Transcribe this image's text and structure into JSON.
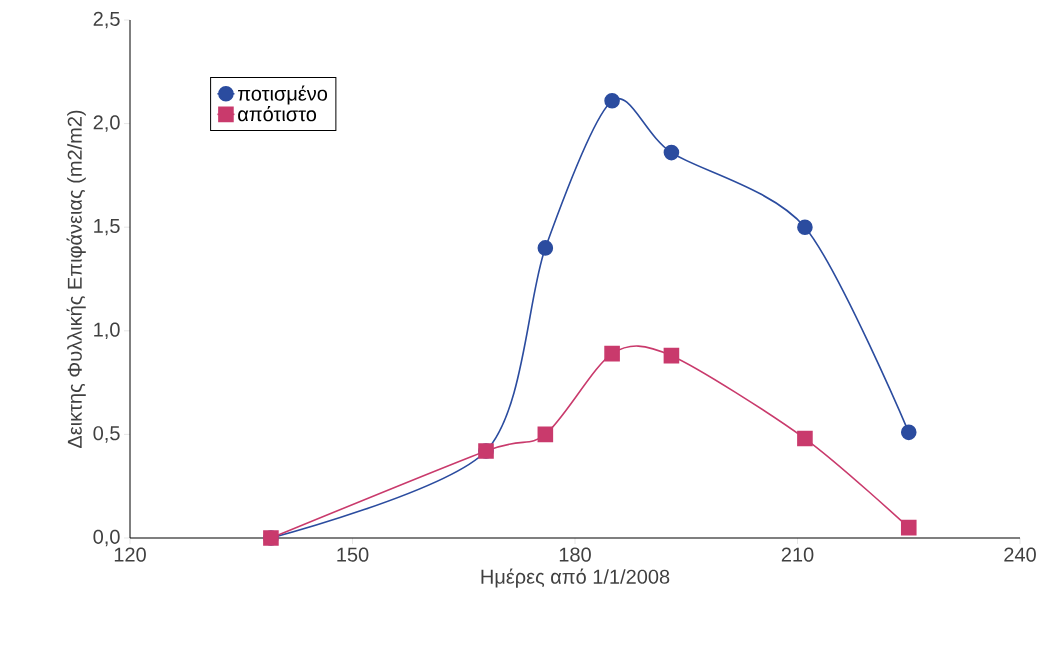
{
  "chart_data": {
    "type": "line",
    "xlabel": "Ημέρες από 1/1/2008",
    "ylabel": "Δεικτης Φυλλικής Επιφάνειας (m2/m2)",
    "series": [
      {
        "name": "ποτισμένο",
        "color": "#2b4c9f",
        "marker": "circle",
        "x": [
          139,
          168,
          176,
          185,
          193,
          211,
          225
        ],
        "values": [
          0,
          0.42,
          1.4,
          2.11,
          1.86,
          1.5,
          0.51
        ]
      },
      {
        "name": "απότιστο",
        "color": "#c93a6c",
        "marker": "square",
        "x": [
          139,
          168,
          176,
          185,
          193,
          211,
          225
        ],
        "values": [
          0,
          0.42,
          0.5,
          0.89,
          0.88,
          0.48,
          0.05
        ]
      }
    ],
    "xlim": [
      120,
      240
    ],
    "xticks": [
      120,
      150,
      180,
      210,
      240
    ],
    "ylim": [
      0,
      2.5
    ],
    "yticks": [
      {
        "value": 0,
        "label": "0,0"
      },
      {
        "value": 0.5,
        "label": "0,5"
      },
      {
        "value": 1,
        "label": "1,0"
      },
      {
        "value": 1.5,
        "label": "1,5"
      },
      {
        "value": 2,
        "label": "2,0"
      },
      {
        "value": 2.5,
        "label": "2,5"
      }
    ],
    "legend": "top left",
    "grid": false
  }
}
